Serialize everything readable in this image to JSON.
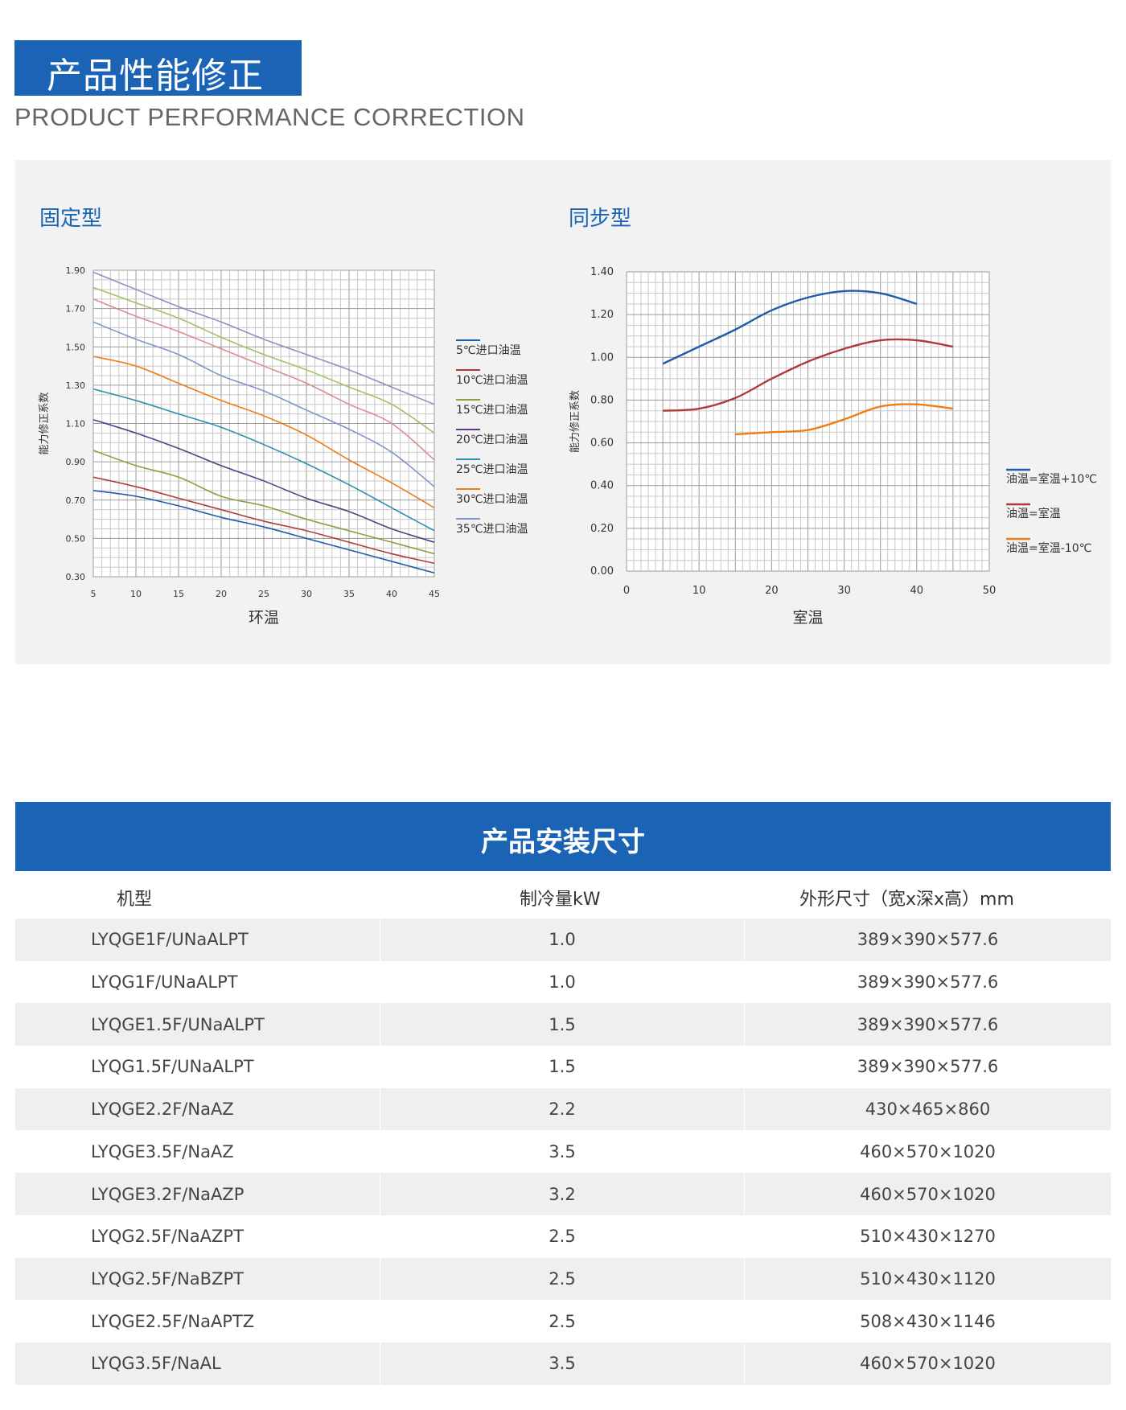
{
  "header": {
    "title_cn": "产品性能修正",
    "title_en": "PRODUCT PERFORMANCE CORRECTION"
  },
  "colors": {
    "brand_blue": "#1a63b5",
    "panel_bg": "#f2f2f2",
    "row_alt": "#efefef"
  },
  "chart_data": [
    {
      "type": "line",
      "title": "固定型",
      "xlabel": "环温",
      "ylabel": "能力修正系数",
      "xlim": [
        5,
        45
      ],
      "ylim": [
        0.3,
        1.9
      ],
      "x_ticks": [
        "5",
        "10",
        "15",
        "20",
        "25",
        "30",
        "35",
        "40",
        "45"
      ],
      "y_ticks": [
        "0.30",
        "0.50",
        "0.70",
        "0.90",
        "1.10",
        "1.30",
        "1.50",
        "1.70",
        "1.90"
      ],
      "grid": true,
      "legend_position": "right",
      "x": [
        5,
        10,
        15,
        20,
        25,
        30,
        35,
        40,
        45
      ],
      "series": [
        {
          "name": "5℃进口油温",
          "color": "#1f5ba8",
          "values": [
            0.75,
            0.72,
            0.67,
            0.61,
            0.56,
            0.5,
            0.44,
            0.38,
            0.32
          ]
        },
        {
          "name": "10℃进口油温",
          "color": "#b03a3a",
          "values": [
            0.82,
            0.77,
            0.71,
            0.65,
            0.59,
            0.54,
            0.48,
            0.42,
            0.37
          ]
        },
        {
          "name": "15℃进口油温",
          "color": "#86a33e",
          "values": [
            0.96,
            0.88,
            0.82,
            0.72,
            0.67,
            0.6,
            0.54,
            0.48,
            0.42
          ]
        },
        {
          "name": "20℃进口油温",
          "color": "#5d3c86",
          "values": [
            1.12,
            1.05,
            0.97,
            0.88,
            0.8,
            0.71,
            0.64,
            0.55,
            0.48
          ]
        },
        {
          "name": "25℃进口油温",
          "color": "#2b8fb0",
          "values": [
            1.28,
            1.22,
            1.15,
            1.08,
            0.99,
            0.89,
            0.78,
            0.66,
            0.54
          ]
        },
        {
          "name": "30℃进口油温",
          "color": "#ef7d14",
          "values": [
            1.45,
            1.4,
            1.31,
            1.22,
            1.14,
            1.04,
            0.91,
            0.79,
            0.66
          ]
        },
        {
          "name": "35℃进口油温",
          "color": "#7e96cc",
          "values": [
            1.63,
            1.54,
            1.46,
            1.35,
            1.27,
            1.17,
            1.07,
            0.95,
            0.77
          ]
        },
        {
          "name": "",
          "color": "#d98d90",
          "values": [
            1.75,
            1.66,
            1.58,
            1.49,
            1.4,
            1.31,
            1.2,
            1.1,
            0.91
          ]
        },
        {
          "name": "",
          "color": "#a4c06a",
          "values": [
            1.81,
            1.73,
            1.65,
            1.55,
            1.46,
            1.38,
            1.29,
            1.2,
            1.05
          ]
        },
        {
          "name": "",
          "color": "#9a8ac4",
          "values": [
            1.89,
            1.8,
            1.71,
            1.63,
            1.54,
            1.46,
            1.38,
            1.29,
            1.2
          ]
        }
      ]
    },
    {
      "type": "line",
      "title": "同步型",
      "xlabel": "室温",
      "ylabel": "能力修正系数",
      "xlim": [
        0,
        50
      ],
      "ylim": [
        0.0,
        1.4
      ],
      "x_ticks": [
        "0",
        "10",
        "20",
        "30",
        "40",
        "50"
      ],
      "y_ticks": [
        "0.00",
        "0.20",
        "0.40",
        "0.60",
        "0.80",
        "1.00",
        "1.20",
        "1.40"
      ],
      "grid": true,
      "legend_position": "right",
      "series": [
        {
          "name": "油温=室温+10℃",
          "color": "#1f5ba8",
          "x": [
            5,
            10,
            15,
            20,
            25,
            30,
            35,
            40
          ],
          "values": [
            0.97,
            1.05,
            1.13,
            1.22,
            1.28,
            1.31,
            1.3,
            1.25
          ]
        },
        {
          "name": "油温=室温",
          "color": "#b03a3a",
          "x": [
            5,
            10,
            15,
            20,
            25,
            30,
            35,
            40,
            45
          ],
          "values": [
            0.75,
            0.76,
            0.81,
            0.9,
            0.98,
            1.04,
            1.08,
            1.08,
            1.05
          ]
        },
        {
          "name": "油温=室温-10℃",
          "color": "#ef7d14",
          "x": [
            15,
            20,
            25,
            30,
            35,
            40,
            45
          ],
          "values": [
            0.64,
            0.65,
            0.66,
            0.71,
            0.77,
            0.78,
            0.76
          ]
        }
      ]
    }
  ],
  "table": {
    "title": "产品安装尺寸",
    "headers": [
      "机型",
      "制冷量kW",
      "外形尺寸（宽x深x高）mm"
    ],
    "rows": [
      [
        "LYQGE1F/UNaALPT",
        "1.0",
        "389×390×577.6"
      ],
      [
        "LYQG1F/UNaALPT",
        "1.0",
        "389×390×577.6"
      ],
      [
        "LYQGE1.5F/UNaALPT",
        "1.5",
        "389×390×577.6"
      ],
      [
        "LYQG1.5F/UNaALPT",
        "1.5",
        "389×390×577.6"
      ],
      [
        "LYQGE2.2F/NaAZ",
        "2.2",
        "430×465×860"
      ],
      [
        "LYQGE3.5F/NaAZ",
        "3.5",
        "460×570×1020"
      ],
      [
        "LYQGE3.2F/NaAZP",
        "3.2",
        "460×570×1020"
      ],
      [
        "LYQG2.5F/NaAZPT",
        "2.5",
        "510×430×1270"
      ],
      [
        "LYQG2.5F/NaBZPT",
        "2.5",
        "510×430×1120"
      ],
      [
        "LYQGE2.5F/NaAPTZ",
        "2.5",
        "508×430×1146"
      ],
      [
        "LYQG3.5F/NaAL",
        "3.5",
        "460×570×1020"
      ]
    ]
  }
}
